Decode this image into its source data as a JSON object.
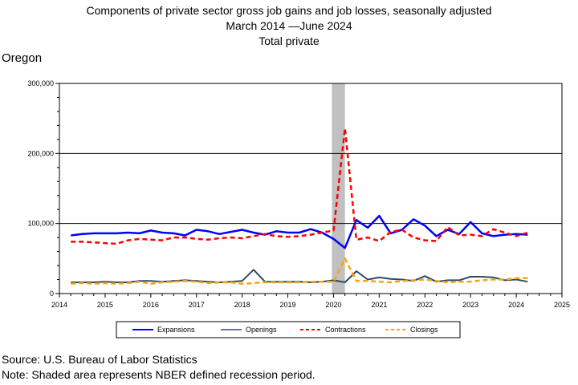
{
  "title": {
    "line1": "Components of private sector gross job gains and job losses, seasonally adjusted",
    "line2": "March 2014 —June 2024",
    "line3": "Total private"
  },
  "region": "Oregon",
  "source": "Source: U.S. Bureau of Labor Statistics",
  "footnote": "Note: Shaded area represents NBER defined recession period.",
  "chart_data": {
    "type": "line",
    "xlim": [
      2014,
      2025
    ],
    "ylim": [
      0,
      300000
    ],
    "x_ticks": [
      "2014",
      "2015",
      "2016",
      "2017",
      "2018",
      "2019",
      "2020",
      "2021",
      "2022",
      "2023",
      "2024",
      "2025"
    ],
    "y_ticks": [
      "0",
      "100,000",
      "200,000",
      "300,000"
    ],
    "grid": "horizontal at 100,000, 200,000 and 300,000",
    "legend_position": "bottom",
    "recession": [
      2020.0,
      2020.25
    ],
    "x": [
      2014.25,
      2014.5,
      2014.75,
      2015.0,
      2015.25,
      2015.5,
      2015.75,
      2016.0,
      2016.25,
      2016.5,
      2016.75,
      2017.0,
      2017.25,
      2017.5,
      2017.75,
      2018.0,
      2018.25,
      2018.5,
      2018.75,
      2019.0,
      2019.25,
      2019.5,
      2019.75,
      2020.0,
      2020.25,
      2020.5,
      2020.75,
      2021.0,
      2021.25,
      2021.5,
      2021.75,
      2022.0,
      2022.25,
      2022.5,
      2022.75,
      2023.0,
      2023.25,
      2023.5,
      2023.75,
      2024.0,
      2024.25
    ],
    "series": [
      {
        "name": "Expansions",
        "color": "#0000ff",
        "dash": "solid",
        "width": 2.5,
        "values": [
          83000,
          85000,
          86000,
          86000,
          86000,
          87000,
          86000,
          90000,
          87000,
          86000,
          83000,
          91000,
          89000,
          85000,
          88000,
          91000,
          87000,
          84000,
          89000,
          87000,
          87000,
          92000,
          87000,
          78000,
          65000,
          105000,
          94000,
          111000,
          86000,
          91000,
          106000,
          97000,
          82000,
          91000,
          85000,
          102000,
          86000,
          82000,
          84000,
          85000,
          84000
        ]
      },
      {
        "name": "Openings",
        "color": "#2f4a6b",
        "dash": "solid",
        "width": 2,
        "values": [
          16000,
          16000,
          16000,
          17000,
          16000,
          16000,
          18000,
          18000,
          17000,
          18000,
          19000,
          18000,
          17000,
          16000,
          17000,
          18000,
          34000,
          17000,
          17000,
          17000,
          17000,
          16000,
          17000,
          19000,
          16000,
          32000,
          20000,
          23000,
          21000,
          20000,
          18000,
          25000,
          17000,
          19000,
          19000,
          24000,
          24000,
          23000,
          19000,
          20000,
          17000
        ]
      },
      {
        "name": "Contractions",
        "color": "#ff0000",
        "dash": "6,4",
        "width": 2.5,
        "values": [
          74000,
          74000,
          73000,
          72000,
          71000,
          76000,
          78000,
          77000,
          76000,
          80000,
          80000,
          78000,
          77000,
          79000,
          80000,
          79000,
          82000,
          85000,
          82000,
          81000,
          82000,
          84000,
          87000,
          90000,
          236000,
          77000,
          80000,
          75000,
          88000,
          91000,
          80000,
          76000,
          75000,
          95000,
          83000,
          84000,
          82000,
          92000,
          87000,
          82000,
          87000
        ]
      },
      {
        "name": "Closings",
        "color": "#ffa500",
        "dash": "6,4",
        "width": 2.5,
        "values": [
          14000,
          15000,
          14000,
          15000,
          14000,
          15000,
          17000,
          14000,
          16000,
          17000,
          18000,
          17000,
          15000,
          16000,
          16000,
          14000,
          15000,
          16000,
          16000,
          16000,
          16000,
          17000,
          17000,
          17000,
          50000,
          18000,
          18000,
          17000,
          16000,
          18000,
          19000,
          20000,
          18000,
          16000,
          17000,
          17000,
          19000,
          20000,
          20000,
          22000,
          22000
        ]
      }
    ]
  }
}
